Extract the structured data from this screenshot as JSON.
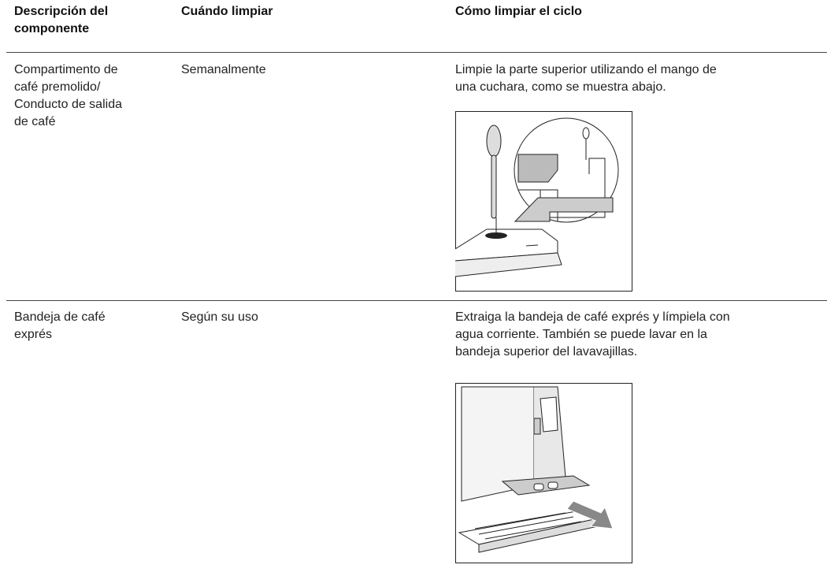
{
  "table": {
    "header": [
      [
        "Descripción del",
        "componente"
      ],
      [
        "Cuándo limpiar"
      ],
      [
        "Cómo limpiar el ciclo"
      ]
    ],
    "rows": [
      [
        [
          "Compartimento de",
          "café premolido/",
          "Conducto de salida",
          "de café"
        ],
        [
          "Semanalmente"
        ],
        [
          "Limpie la parte superior utilizando el mango de",
          "una cuchara, como se muestra abajo."
        ]
      ],
      [
        [
          "Bandeja de café",
          "exprés"
        ],
        [
          "Según su uso"
        ],
        [
          "Extraiga la bandeja de café exprés y límpiela con",
          "agua corriente. También se puede lavar en la",
          "bandeja superior del lavavajillas."
        ]
      ]
    ]
  }
}
